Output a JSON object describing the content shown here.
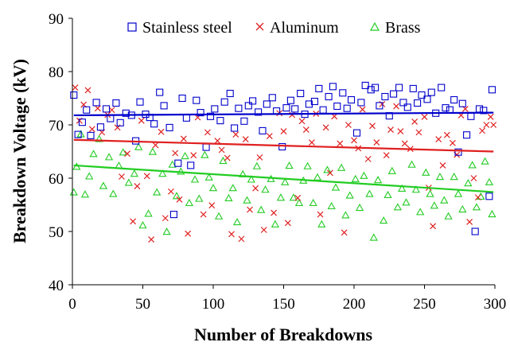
{
  "chart_data": {
    "type": "scatter",
    "xlabel": "Number of Breakdowns",
    "ylabel": "Breakdown Voltage (kV)",
    "xlim": [
      0,
      300
    ],
    "ylim": [
      40,
      90
    ],
    "xticks": [
      0,
      50,
      100,
      150,
      200,
      250,
      300
    ],
    "yticks": [
      40,
      50,
      60,
      70,
      80,
      90
    ],
    "grid": false,
    "legend_position": "top",
    "series": [
      {
        "name": "Stainless steel",
        "marker": "square-open",
        "color": "#0000CC",
        "trend": {
          "x": [
            1,
            299
          ],
          "y": [
            71.8,
            72.3
          ]
        },
        "points_x": [
          1,
          4,
          7,
          10,
          13,
          17,
          20,
          24,
          27,
          31,
          34,
          38,
          42,
          45,
          48,
          52,
          55,
          58,
          62,
          65,
          69,
          72,
          75,
          78,
          81,
          84,
          88,
          91,
          95,
          98,
          101,
          105,
          108,
          112,
          115,
          118,
          122,
          125,
          128,
          132,
          135,
          138,
          142,
          145,
          149,
          152,
          155,
          158,
          162,
          165,
          168,
          172,
          175,
          178,
          182,
          185,
          188,
          192,
          195,
          198,
          202,
          205,
          208,
          212,
          215,
          218,
          222,
          225,
          228,
          232,
          235,
          238,
          242,
          245,
          248,
          252,
          255,
          258,
          262,
          265,
          268,
          271,
          274,
          277,
          280,
          283,
          286,
          289,
          292,
          296,
          298
        ],
        "points_y": [
          75.6,
          68.2,
          70.5,
          72.8,
          68.0,
          74.2,
          69.6,
          73.0,
          71.2,
          74.1,
          70.4,
          72.2,
          71.8,
          67.0,
          74.3,
          72.0,
          71.4,
          70.2,
          76.1,
          73.6,
          69.5,
          53.2,
          62.8,
          75.0,
          71.3,
          62.4,
          74.6,
          72.3,
          65.8,
          71.6,
          73.0,
          70.8,
          74.3,
          75.9,
          69.4,
          73.1,
          70.7,
          73.6,
          74.5,
          72.4,
          68.9,
          73.9,
          75.1,
          72.6,
          65.9,
          73.2,
          74.6,
          73.0,
          75.9,
          72.0,
          73.9,
          74.4,
          76.8,
          72.8,
          75.3,
          77.2,
          73.5,
          76.0,
          73.1,
          74.7,
          68.5,
          74.2,
          77.4,
          76.6,
          77.0,
          73.6,
          75.3,
          71.7,
          75.8,
          77.0,
          74.2,
          73.3,
          76.8,
          74.1,
          75.6,
          74.8,
          76.1,
          72.2,
          77.0,
          73.2,
          72.8,
          74.7,
          64.9,
          74.0,
          68.1,
          71.6,
          50.0,
          73.0,
          72.7,
          56.6,
          76.6
        ]
      },
      {
        "name": "Aluminum",
        "marker": "x",
        "color": "#E02020",
        "trend": {
          "x": [
            1,
            299
          ],
          "y": [
            67.2,
            65.0
          ]
        },
        "points_x": [
          2,
          5,
          8,
          11,
          14,
          18,
          21,
          25,
          28,
          32,
          35,
          39,
          43,
          46,
          49,
          53,
          56,
          59,
          63,
          66,
          70,
          73,
          76,
          79,
          82,
          86,
          89,
          93,
          96,
          99,
          103,
          106,
          110,
          113,
          116,
          120,
          123,
          126,
          130,
          133,
          136,
          140,
          143,
          147,
          150,
          153,
          156,
          160,
          163,
          166,
          170,
          173,
          176,
          180,
          183,
          186,
          190,
          193,
          196,
          200,
          203,
          206,
          210,
          213,
          216,
          220,
          223,
          226,
          230,
          233,
          236,
          240,
          243,
          246,
          250,
          253,
          256,
          260,
          263,
          266,
          270,
          273,
          276,
          279,
          282,
          285,
          288,
          291,
          294,
          297,
          299
        ],
        "points_y": [
          77.0,
          70.8,
          73.8,
          76.5,
          69.2,
          73.1,
          68.6,
          71.9,
          72.8,
          69.5,
          60.3,
          64.6,
          51.9,
          58.5,
          70.8,
          60.4,
          48.5,
          66.2,
          68.7,
          52.5,
          57.5,
          64.7,
          56.0,
          67.4,
          49.6,
          64.3,
          71.4,
          53.2,
          68.6,
          54.9,
          67.0,
          65.3,
          63.8,
          49.5,
          68.2,
          48.6,
          67.3,
          54.1,
          58.1,
          63.9,
          50.3,
          67.9,
          53.5,
          72.2,
          68.8,
          51.6,
          71.9,
          56.3,
          70.7,
          69.1,
          66.7,
          72.1,
          53.2,
          69.5,
          61.0,
          71.6,
          66.5,
          49.8,
          70.0,
          67.1,
          65.6,
          72.9,
          63.6,
          69.8,
          66.7,
          73.9,
          64.3,
          69.1,
          73.5,
          68.8,
          66.5,
          65.5,
          70.6,
          68.6,
          71.5,
          58.2,
          51.0,
          67.3,
          62.4,
          68.1,
          66.6,
          64.4,
          71.8,
          73.0,
          51.8,
          60.0,
          56.4,
          68.9,
          70.0,
          71.5,
          70.0
        ]
      },
      {
        "name": "Brass",
        "marker": "triangle-open",
        "color": "#22CC22",
        "trend": {
          "x": [
            1,
            299
          ],
          "y": [
            62.4,
            57.4
          ]
        },
        "points_x": [
          1,
          3,
          6,
          9,
          12,
          15,
          19,
          22,
          26,
          29,
          33,
          36,
          40,
          44,
          47,
          50,
          54,
          57,
          60,
          64,
          67,
          71,
          74,
          77,
          80,
          83,
          87,
          90,
          94,
          97,
          100,
          104,
          107,
          111,
          114,
          117,
          121,
          124,
          127,
          131,
          134,
          137,
          141,
          144,
          148,
          151,
          154,
          157,
          161,
          164,
          167,
          171,
          174,
          177,
          181,
          184,
          187,
          191,
          194,
          197,
          201,
          204,
          207,
          211,
          214,
          217,
          221,
          224,
          227,
          231,
          234,
          237,
          241,
          244,
          247,
          251,
          254,
          257,
          261,
          264,
          267,
          271,
          274,
          277,
          281,
          284,
          287,
          290,
          293,
          296,
          298
        ],
        "points_y": [
          57.3,
          62.1,
          68.2,
          56.9,
          60.3,
          64.5,
          67.3,
          58.5,
          63.9,
          57.0,
          62.3,
          64.8,
          59.1,
          60.8,
          65.8,
          51.1,
          53.3,
          64.9,
          57.3,
          60.8,
          49.9,
          62.5,
          56.6,
          61.2,
          64.1,
          55.3,
          59.7,
          56.1,
          64.3,
          60.1,
          58.1,
          52.8,
          63.2,
          56.2,
          58.1,
          51.7,
          60.7,
          55.8,
          59.7,
          62.2,
          54.0,
          57.8,
          59.8,
          51.3,
          56.3,
          59.2,
          62.3,
          56.3,
          55.3,
          59.5,
          62.2,
          55.3,
          60.1,
          51.3,
          61.5,
          54.7,
          58.2,
          61.9,
          53.0,
          56.7,
          59.8,
          54.4,
          60.4,
          57.0,
          48.8,
          59.6,
          52.0,
          56.8,
          61.3,
          54.5,
          58.0,
          55.4,
          62.5,
          57.8,
          53.6,
          61.0,
          57.0,
          54.8,
          60.2,
          55.8,
          52.8,
          60.2,
          57.0,
          54.1,
          59.0,
          62.4,
          54.5,
          56.5,
          63.1,
          59.2,
          53.2
        ]
      }
    ]
  }
}
